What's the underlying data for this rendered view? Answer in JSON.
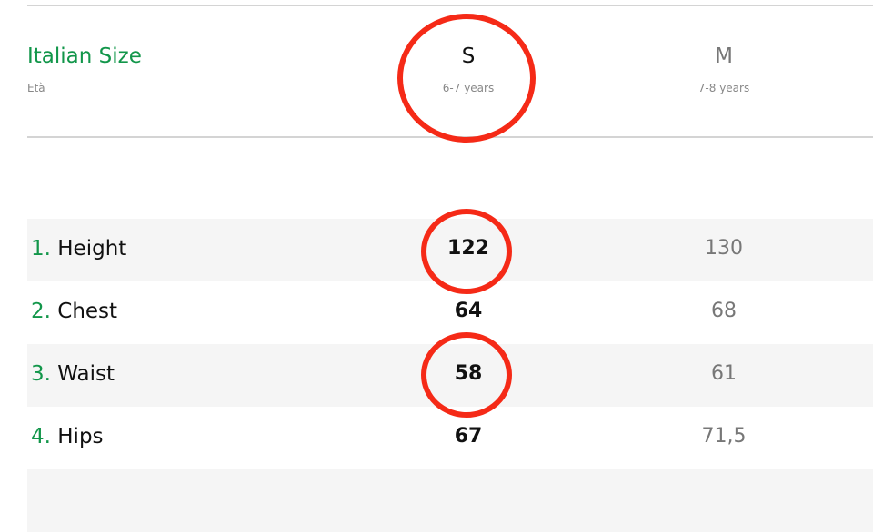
{
  "header": {
    "title": "Italian Size",
    "subtitle": "Età"
  },
  "columns": [
    {
      "size": "S",
      "age": "6-7 years"
    },
    {
      "size": "M",
      "age": "7-8 years"
    }
  ],
  "rows": [
    {
      "num": "1.",
      "label": "Height",
      "s": "122",
      "m": "130"
    },
    {
      "num": "2.",
      "label": "Chest",
      "s": "64",
      "m": "68"
    },
    {
      "num": "3.",
      "label": "Waist",
      "s": "58",
      "m": "61"
    },
    {
      "num": "4.",
      "label": "Hips",
      "s": "67",
      "m": "71,5"
    }
  ],
  "colors": {
    "accent": "#12964a",
    "annotation": "#f52a17"
  },
  "annotations": [
    "circle-size-S",
    "circle-height-S",
    "circle-waist-S"
  ]
}
